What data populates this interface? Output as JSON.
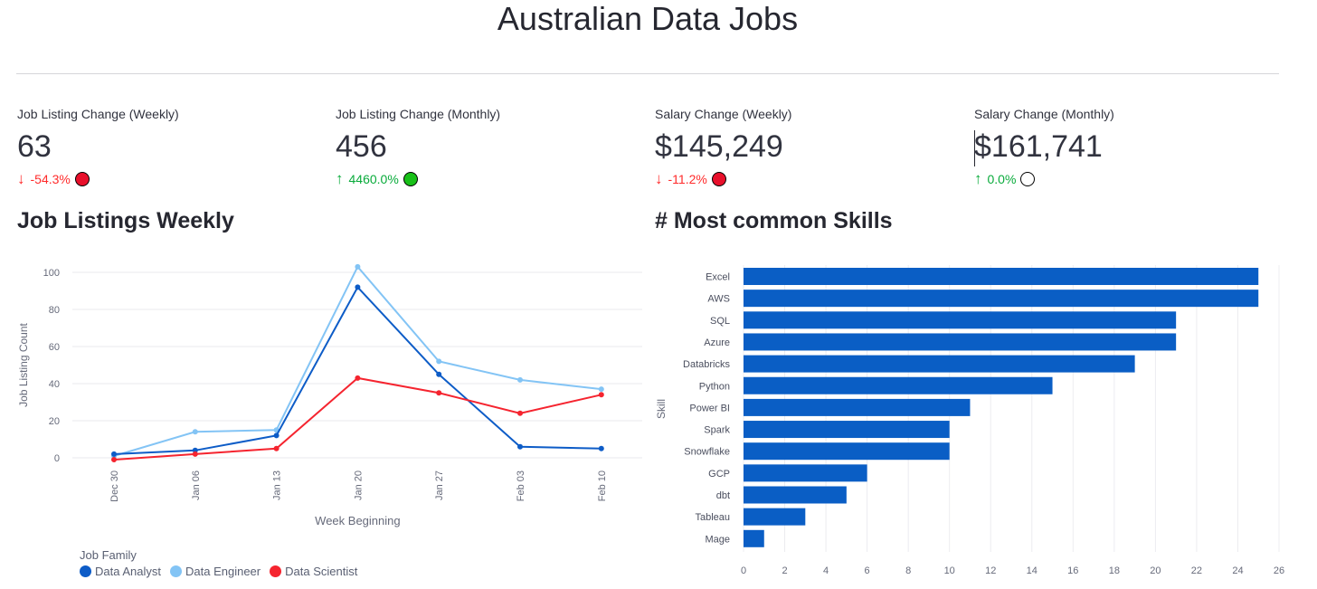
{
  "page": {
    "title": "Australian Data Jobs"
  },
  "metrics": [
    {
      "label": "Job Listing Change (Weekly)",
      "value": "63",
      "delta": "-54.3%",
      "direction": "down",
      "dot_color": "#e8102b"
    },
    {
      "label": "Job Listing Change (Monthly)",
      "value": "456",
      "delta": "4460.0%",
      "direction": "up",
      "dot_color": "#18c018"
    },
    {
      "label": "Salary Change (Weekly)",
      "value": "$145,249",
      "delta": "-11.2%",
      "direction": "down",
      "dot_color": "#e8102b"
    },
    {
      "label": "Salary Change (Monthly)",
      "value": "$161,741",
      "delta": "0.0%",
      "direction": "up",
      "dot_color": "#ffffff"
    }
  ],
  "sections": {
    "job_listings_title": "Job Listings Weekly",
    "skills_title": "# Most common Skills"
  },
  "legend": {
    "title": "Job Family",
    "items": [
      {
        "name": "Data Analyst",
        "color": "#0d5cc7"
      },
      {
        "name": "Data Engineer",
        "color": "#83c4f5"
      },
      {
        "name": "Data Scientist",
        "color": "#f5242f"
      }
    ]
  },
  "chart_data": [
    {
      "type": "line",
      "title": "Job Listings Weekly",
      "xlabel": "Week Beginning",
      "ylabel": "Job Listing Count",
      "x": [
        "Dec 30",
        "Jan 06",
        "Jan 13",
        "Jan 20",
        "Jan 27",
        "Feb 03",
        "Feb 10"
      ],
      "ylim": [
        0,
        100
      ],
      "yticks": [
        0,
        20,
        40,
        60,
        80,
        100
      ],
      "grid": true,
      "legend_position": "bottom-left",
      "series": [
        {
          "name": "Data Analyst",
          "color": "#0d5cc7",
          "values": [
            2,
            4,
            12,
            92,
            45,
            6,
            5
          ]
        },
        {
          "name": "Data Engineer",
          "color": "#83c4f5",
          "values": [
            1,
            14,
            15,
            103,
            52,
            42,
            37
          ]
        },
        {
          "name": "Data Scientist",
          "color": "#f5242f",
          "values": [
            -1,
            2,
            5,
            43,
            35,
            24,
            34
          ]
        }
      ]
    },
    {
      "type": "bar",
      "orientation": "horizontal",
      "title": "# Most common Skills",
      "xlabel": "",
      "ylabel": "Skill",
      "categories": [
        "Excel",
        "AWS",
        "SQL",
        "Azure",
        "Databricks",
        "Python",
        "Power BI",
        "Spark",
        "Snowflake",
        "GCP",
        "dbt",
        "Tableau",
        "Mage"
      ],
      "values": [
        25,
        25,
        21,
        21,
        19,
        15,
        11,
        10,
        10,
        6,
        5,
        3,
        1
      ],
      "xlim": [
        0,
        26
      ],
      "xticks": [
        0,
        2,
        4,
        6,
        8,
        10,
        12,
        14,
        16,
        18,
        20,
        22,
        24,
        26
      ],
      "grid": true,
      "color": "#0a5ec5"
    }
  ]
}
